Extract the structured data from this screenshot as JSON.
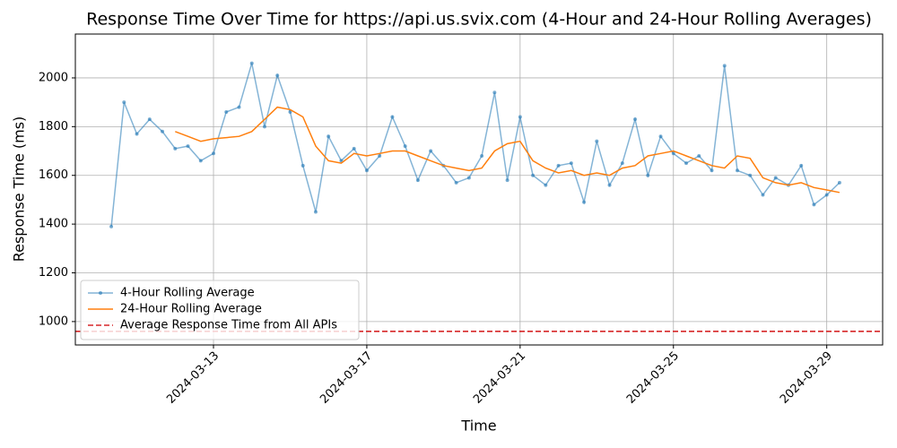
{
  "chart_data": {
    "type": "line",
    "title": "Response Time Over Time for https://api.us.svix.com (4-Hour and 24-Hour Rolling Averages)",
    "x_label": "Time",
    "y_label": "Response Time (ms)",
    "x": [
      "2024-03-10 08:00",
      "2024-03-10 16:00",
      "2024-03-11 00:00",
      "2024-03-11 08:00",
      "2024-03-11 16:00",
      "2024-03-12 00:00",
      "2024-03-12 08:00",
      "2024-03-12 16:00",
      "2024-03-13 00:00",
      "2024-03-13 08:00",
      "2024-03-13 16:00",
      "2024-03-14 00:00",
      "2024-03-14 08:00",
      "2024-03-14 16:00",
      "2024-03-15 00:00",
      "2024-03-15 08:00",
      "2024-03-15 16:00",
      "2024-03-16 00:00",
      "2024-03-16 08:00",
      "2024-03-16 16:00",
      "2024-03-17 00:00",
      "2024-03-17 08:00",
      "2024-03-17 16:00",
      "2024-03-18 00:00",
      "2024-03-18 08:00",
      "2024-03-18 16:00",
      "2024-03-19 00:00",
      "2024-03-19 08:00",
      "2024-03-19 16:00",
      "2024-03-20 00:00",
      "2024-03-20 08:00",
      "2024-03-20 16:00",
      "2024-03-21 00:00",
      "2024-03-21 08:00",
      "2024-03-21 16:00",
      "2024-03-22 00:00",
      "2024-03-22 08:00",
      "2024-03-22 16:00",
      "2024-03-23 00:00",
      "2024-03-23 08:00",
      "2024-03-23 16:00",
      "2024-03-24 00:00",
      "2024-03-24 08:00",
      "2024-03-24 16:00",
      "2024-03-25 00:00",
      "2024-03-25 08:00",
      "2024-03-25 16:00",
      "2024-03-26 00:00",
      "2024-03-26 08:00",
      "2024-03-26 16:00",
      "2024-03-27 00:00",
      "2024-03-27 08:00",
      "2024-03-27 16:00",
      "2024-03-28 00:00",
      "2024-03-28 08:00",
      "2024-03-28 16:00",
      "2024-03-29 00:00",
      "2024-03-29 08:00"
    ],
    "series": [
      {
        "name": "4-Hour Rolling Average",
        "color": "#1f77b4",
        "markers": true,
        "values": [
          1390,
          1900,
          1770,
          1830,
          1780,
          1710,
          1720,
          1660,
          1690,
          1860,
          1880,
          2060,
          1800,
          2010,
          1860,
          1640,
          1450,
          1760,
          1660,
          1710,
          1620,
          1680,
          1840,
          1720,
          1580,
          1700,
          1640,
          1570,
          1590,
          1680,
          1940,
          1580,
          1840,
          1600,
          1560,
          1640,
          1650,
          1490,
          1740,
          1560,
          1650,
          1830,
          1600,
          1760,
          1690,
          1650,
          1680,
          1620,
          2050,
          1620,
          1600,
          1520,
          1590,
          1560,
          1640,
          1480,
          1520,
          1570
        ]
      },
      {
        "name": "24-Hour Rolling Average",
        "color": "#ff7f0e",
        "markers": false,
        "values": [
          null,
          null,
          null,
          null,
          null,
          1780,
          1760,
          1740,
          1750,
          1755,
          1760,
          1780,
          1830,
          1880,
          1870,
          1840,
          1720,
          1660,
          1650,
          1690,
          1680,
          1690,
          1700,
          1700,
          1680,
          1660,
          1640,
          1630,
          1620,
          1630,
          1700,
          1730,
          1740,
          1660,
          1630,
          1610,
          1620,
          1600,
          1610,
          1600,
          1630,
          1640,
          1680,
          1690,
          1700,
          1680,
          1660,
          1640,
          1630,
          1680,
          1670,
          1590,
          1570,
          1560,
          1570,
          1550,
          1540,
          1530
        ]
      }
    ],
    "hline": {
      "name": "Average Response Time from All APIs",
      "value": 960,
      "color": "#d62728"
    },
    "xlim": [
      "2024-03-09 09:30",
      "2024-03-30 11:00"
    ],
    "xticks": [
      "2024-03-13",
      "2024-03-17",
      "2024-03-21",
      "2024-03-25",
      "2024-03-29"
    ],
    "ylim": [
      904,
      2180
    ],
    "yticks": [
      1000,
      1200,
      1400,
      1600,
      1800,
      2000
    ],
    "grid": true,
    "legend": "lower left"
  }
}
